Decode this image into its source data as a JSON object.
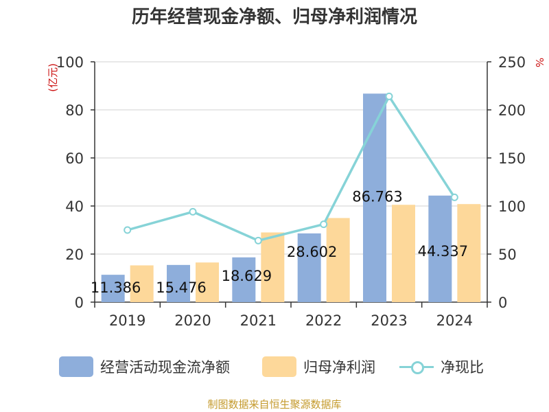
{
  "chart_data": {
    "type": "bar+line",
    "title": "历年经营现金净额、归母净利润情况",
    "categories": [
      "2019",
      "2020",
      "2021",
      "2022",
      "2023",
      "2024"
    ],
    "series": [
      {
        "name": "经营活动现金流净额",
        "axis": "left",
        "kind": "bar",
        "color": "#8eaedb",
        "values": [
          11.386,
          15.476,
          18.629,
          28.602,
          86.763,
          44.337
        ],
        "labels": [
          "11.386",
          "15.476",
          "18.629",
          "28.602",
          "86.763",
          "44.337"
        ]
      },
      {
        "name": "归母净利润",
        "axis": "left",
        "kind": "bar",
        "color": "#fdd89a",
        "values": [
          15.3,
          16.5,
          29.0,
          35.0,
          40.5,
          40.8
        ]
      },
      {
        "name": "净现比",
        "axis": "right",
        "kind": "line",
        "color": "#86d3d7",
        "values": [
          75,
          94,
          64,
          81,
          214,
          109
        ]
      }
    ],
    "y_left": {
      "unit": "(亿元)",
      "ylim": [
        0,
        100
      ],
      "ticks": [
        0,
        20,
        40,
        60,
        80,
        100
      ]
    },
    "y_right": {
      "unit": "%",
      "ylim": [
        0,
        250
      ],
      "ticks": [
        0,
        50,
        100,
        150,
        200,
        250
      ]
    },
    "grid": true,
    "legend_position": "bottom"
  },
  "source": "制图数据来自恒生聚源数据库"
}
